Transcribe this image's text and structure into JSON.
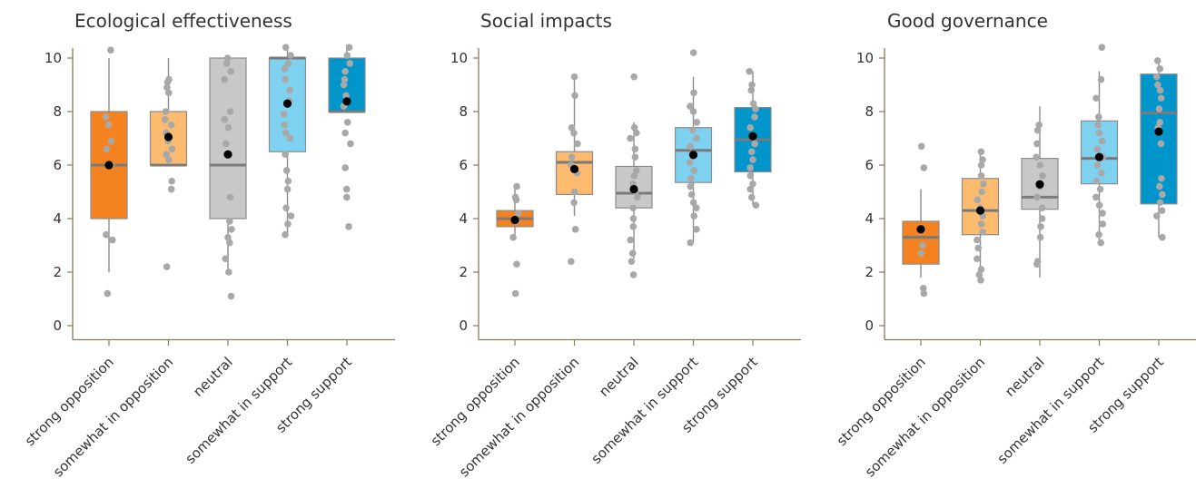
{
  "chart_data": [
    {
      "type": "box",
      "title": "Ecological effectiveness",
      "categories": [
        "strong opposition",
        "somewhat in opposition",
        "neutral",
        "somewhat in support",
        "strong support"
      ],
      "colors": [
        "#f58220",
        "#fdbb6f",
        "#c8c8c8",
        "#7fd1f0",
        "#0096cc"
      ],
      "ylim": [
        0,
        10.5
      ],
      "yticks": [
        "0",
        "2",
        "4",
        "6",
        "8",
        "10"
      ],
      "series": [
        {
          "q1": 4,
          "median": 6,
          "q3": 8,
          "whisker_low": 2,
          "whisker_high": 10,
          "mean": 6.0,
          "points": [
            10.3,
            7.8,
            7.5,
            6.9,
            6.6,
            6.0,
            3.4,
            3.2,
            1.2
          ]
        },
        {
          "q1": 6,
          "median": 6,
          "q3": 8,
          "whisker_low": 6,
          "whisker_high": 10,
          "mean": 7.05,
          "points": [
            9.2,
            9.1,
            8.9,
            8.7,
            8.0,
            7.7,
            7.5,
            7.2,
            6.9,
            6.6,
            6.4,
            6.2,
            5.4,
            5.1,
            2.2
          ]
        },
        {
          "q1": 4,
          "median": 6,
          "q3": 10,
          "whisker_low": 2,
          "whisker_high": 10,
          "mean": 6.4,
          "points": [
            10.0,
            9.8,
            9.5,
            9.2,
            8.0,
            7.7,
            7.4,
            6.8,
            6.4,
            4.8,
            3.9,
            3.6,
            3.3,
            3.1,
            2.5,
            2.0,
            1.1
          ]
        },
        {
          "q1": 6.5,
          "median": 10,
          "q3": 10,
          "whisker_low": 3.4,
          "whisker_high": 10.5,
          "mean": 8.3,
          "points": [
            10.4,
            10.1,
            9.8,
            9.6,
            9.2,
            8.8,
            8.4,
            7.9,
            7.5,
            7.2,
            7.0,
            6.4,
            5.8,
            5.4,
            5.1,
            4.4,
            4.1,
            3.8,
            3.4
          ]
        },
        {
          "q1": 8,
          "median": 8,
          "q3": 10,
          "whisker_low": 8,
          "whisker_high": 10.5,
          "mean": 8.38,
          "points": [
            10.4,
            10.1,
            9.8,
            9.5,
            9.2,
            9.0,
            8.6,
            8.2,
            7.6,
            7.2,
            6.8,
            5.9,
            5.1,
            4.8,
            3.7
          ]
        }
      ]
    },
    {
      "type": "box",
      "title": "Social impacts",
      "categories": [
        "strong opposition",
        "somewhat in opposition",
        "neutral",
        "somewhat in support",
        "strong support"
      ],
      "colors": [
        "#f58220",
        "#fdbb6f",
        "#c8c8c8",
        "#7fd1f0",
        "#0096cc"
      ],
      "ylim": [
        0,
        10.5
      ],
      "yticks": [
        "0",
        "2",
        "4",
        "6",
        "8",
        "10"
      ],
      "series": [
        {
          "q1": 3.7,
          "median": 4.0,
          "q3": 4.3,
          "whisker_low": 3.3,
          "whisker_high": 5.3,
          "mean": 3.95,
          "points": [
            5.2,
            4.8,
            4.7,
            4.2,
            3.9,
            3.3,
            2.3,
            1.2
          ]
        },
        {
          "q1": 4.9,
          "median": 6.1,
          "q3": 6.5,
          "whisker_low": 4.1,
          "whisker_high": 9.3,
          "mean": 5.85,
          "points": [
            9.3,
            8.6,
            7.4,
            7.2,
            6.8,
            6.3,
            6.0,
            5.7,
            5.0,
            4.6,
            3.6,
            2.4
          ]
        },
        {
          "q1": 4.4,
          "median": 4.95,
          "q3": 5.95,
          "whisker_low": 2.5,
          "whisker_high": 7.6,
          "mean": 5.1,
          "points": [
            9.3,
            7.4,
            7.2,
            7.0,
            6.6,
            6.3,
            5.8,
            5.6,
            5.3,
            5.0,
            4.8,
            4.4,
            4.0,
            3.7,
            3.2,
            2.7,
            2.4,
            1.9
          ]
        },
        {
          "q1": 5.35,
          "median": 6.55,
          "q3": 7.4,
          "whisker_low": 3.1,
          "whisker_high": 9.3,
          "mean": 6.38,
          "points": [
            10.2,
            8.7,
            8.2,
            8.0,
            7.6,
            7.3,
            7.0,
            6.7,
            6.4,
            6.1,
            5.8,
            5.5,
            5.2,
            4.9,
            4.6,
            4.4,
            4.1,
            3.6,
            3.1
          ]
        },
        {
          "q1": 5.75,
          "median": 6.95,
          "q3": 8.15,
          "whisker_low": 4.5,
          "whisker_high": 9.5,
          "mean": 7.08,
          "points": [
            9.5,
            9.0,
            8.8,
            8.3,
            8.1,
            7.8,
            7.4,
            7.1,
            6.8,
            6.5,
            6.2,
            5.9,
            5.6,
            5.3,
            5.1,
            4.8,
            4.5
          ]
        }
      ]
    },
    {
      "type": "box",
      "title": "Good governance",
      "categories": [
        "strong opposition",
        "somewhat in opposition",
        "neutral",
        "somewhat in support",
        "strong support"
      ],
      "colors": [
        "#f58220",
        "#fdbb6f",
        "#c8c8c8",
        "#7fd1f0",
        "#0096cc"
      ],
      "ylim": [
        0,
        10.5
      ],
      "yticks": [
        "0",
        "2",
        "4",
        "6",
        "8",
        "10"
      ],
      "series": [
        {
          "q1": 2.3,
          "median": 3.3,
          "q3": 3.9,
          "whisker_low": 1.8,
          "whisker_high": 5.1,
          "mean": 3.6,
          "points": [
            6.7,
            5.9,
            3.6,
            3.0,
            2.7,
            1.4,
            1.2
          ]
        },
        {
          "q1": 3.4,
          "median": 4.3,
          "q3": 5.5,
          "whisker_low": 1.7,
          "whisker_high": 6.5,
          "mean": 4.3,
          "points": [
            6.5,
            6.2,
            6.0,
            5.6,
            5.3,
            5.0,
            4.7,
            4.4,
            4.1,
            3.8,
            3.5,
            3.2,
            2.9,
            2.5,
            2.1,
            1.9,
            1.7
          ]
        },
        {
          "q1": 4.35,
          "median": 4.8,
          "q3": 6.25,
          "whisker_low": 1.8,
          "whisker_high": 8.2,
          "mean": 5.28,
          "points": [
            7.5,
            7.3,
            6.8,
            6.3,
            6.0,
            5.6,
            5.2,
            4.8,
            4.4,
            4.0,
            3.7,
            3.3,
            2.4,
            2.3
          ]
        },
        {
          "q1": 5.3,
          "median": 6.25,
          "q3": 7.65,
          "whisker_low": 3.1,
          "whisker_high": 9.5,
          "mean": 6.3,
          "points": [
            10.4,
            9.2,
            8.5,
            7.8,
            7.5,
            7.2,
            6.9,
            6.6,
            6.3,
            6.0,
            5.7,
            5.4,
            5.1,
            4.8,
            4.5,
            4.2,
            3.8,
            3.4,
            3.1
          ]
        },
        {
          "q1": 4.55,
          "median": 7.95,
          "q3": 9.4,
          "whisker_low": 3.3,
          "whisker_high": 9.9,
          "mean": 7.25,
          "points": [
            9.9,
            9.6,
            9.3,
            9.0,
            8.8,
            8.5,
            8.1,
            7.6,
            7.4,
            6.8,
            5.5,
            5.2,
            4.9,
            4.6,
            4.3,
            4.1,
            3.3
          ]
        }
      ]
    }
  ]
}
